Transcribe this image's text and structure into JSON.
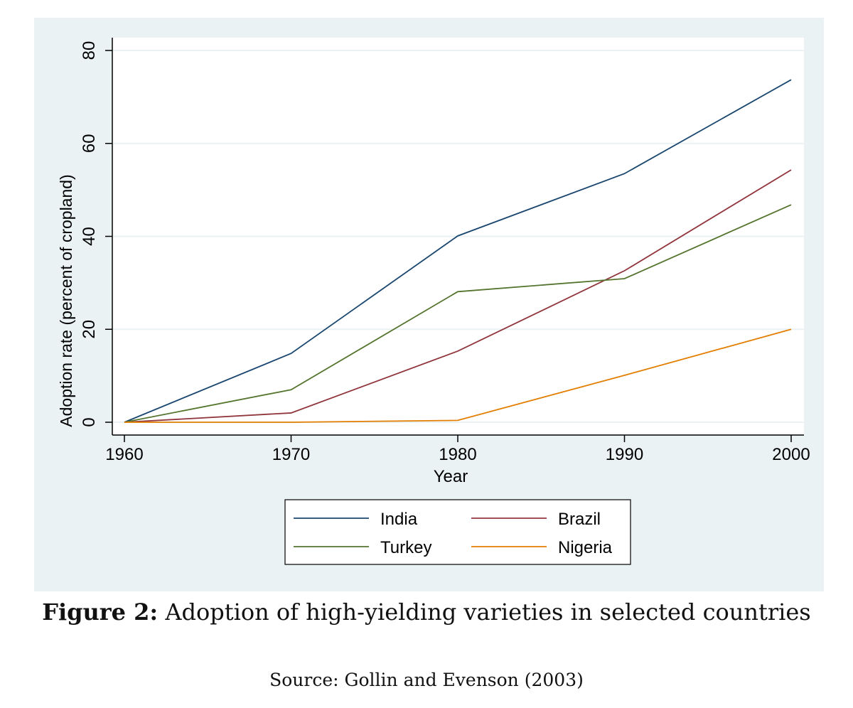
{
  "chart_data": {
    "type": "line",
    "title": "",
    "xlabel": "Year",
    "ylabel": "Adoption rate (percent of cropland)",
    "x": [
      1960,
      1970,
      1980,
      1990,
      2000
    ],
    "xticks": [
      "1960",
      "1970",
      "1980",
      "1990",
      "2000"
    ],
    "yticks": [
      "0",
      "20",
      "40",
      "60",
      "80"
    ],
    "xlim": [
      1960,
      2000
    ],
    "ylim": [
      0,
      80
    ],
    "grid": true,
    "legend_position": "bottom",
    "series": [
      {
        "name": "India",
        "color": "#1a476f",
        "values": [
          0,
          14.8,
          40.1,
          53.5,
          73.7
        ]
      },
      {
        "name": "Brazil",
        "color": "#90353b",
        "values": [
          0,
          2.0,
          15.3,
          32.6,
          54.3
        ]
      },
      {
        "name": "Turkey",
        "color": "#55752f",
        "values": [
          0,
          7.0,
          28.1,
          30.9,
          46.8
        ]
      },
      {
        "name": "Nigeria",
        "color": "#e37e00",
        "values": [
          0,
          0,
          0.4,
          10.1,
          20.0
        ]
      }
    ]
  },
  "caption": {
    "label": "Figure 2:",
    "text": " Adoption of high-yielding varieties in selected countries",
    "source": "Source: Gollin and Evenson (2003)"
  },
  "colors": {
    "outer_bg": "#eaf2f3",
    "plot_bg": "#ffffff",
    "grid": "#eaf2f3"
  }
}
